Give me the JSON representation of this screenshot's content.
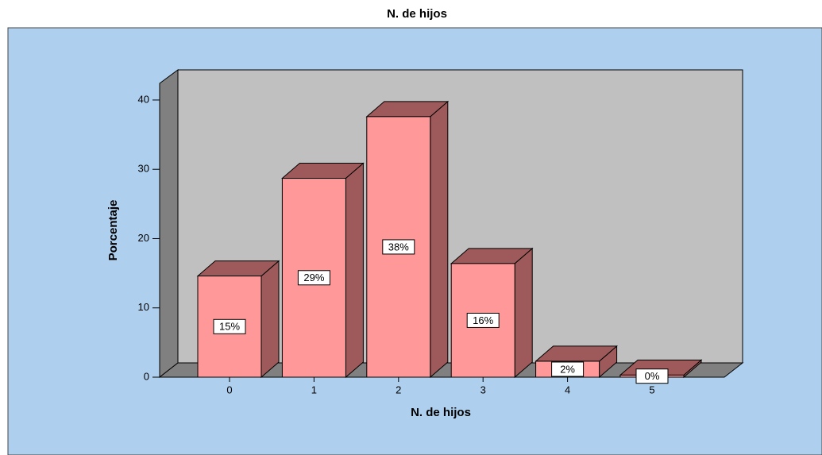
{
  "chart_data": {
    "type": "bar3d",
    "title": "N. de hijos",
    "xlabel": "N. de hijos",
    "ylabel": "Porcentaje",
    "categories": [
      "0",
      "1",
      "2",
      "3",
      "4",
      "5"
    ],
    "values": [
      14.6,
      28.7,
      37.6,
      16.4,
      2.3,
      0.3
    ],
    "value_labels": [
      "15%",
      "29%",
      "38%",
      "16%",
      "2%",
      "0%"
    ],
    "color": "#ff9999",
    "ylim": [
      0,
      42.4
    ],
    "yticks": [
      0,
      10,
      20,
      30,
      40
    ]
  }
}
